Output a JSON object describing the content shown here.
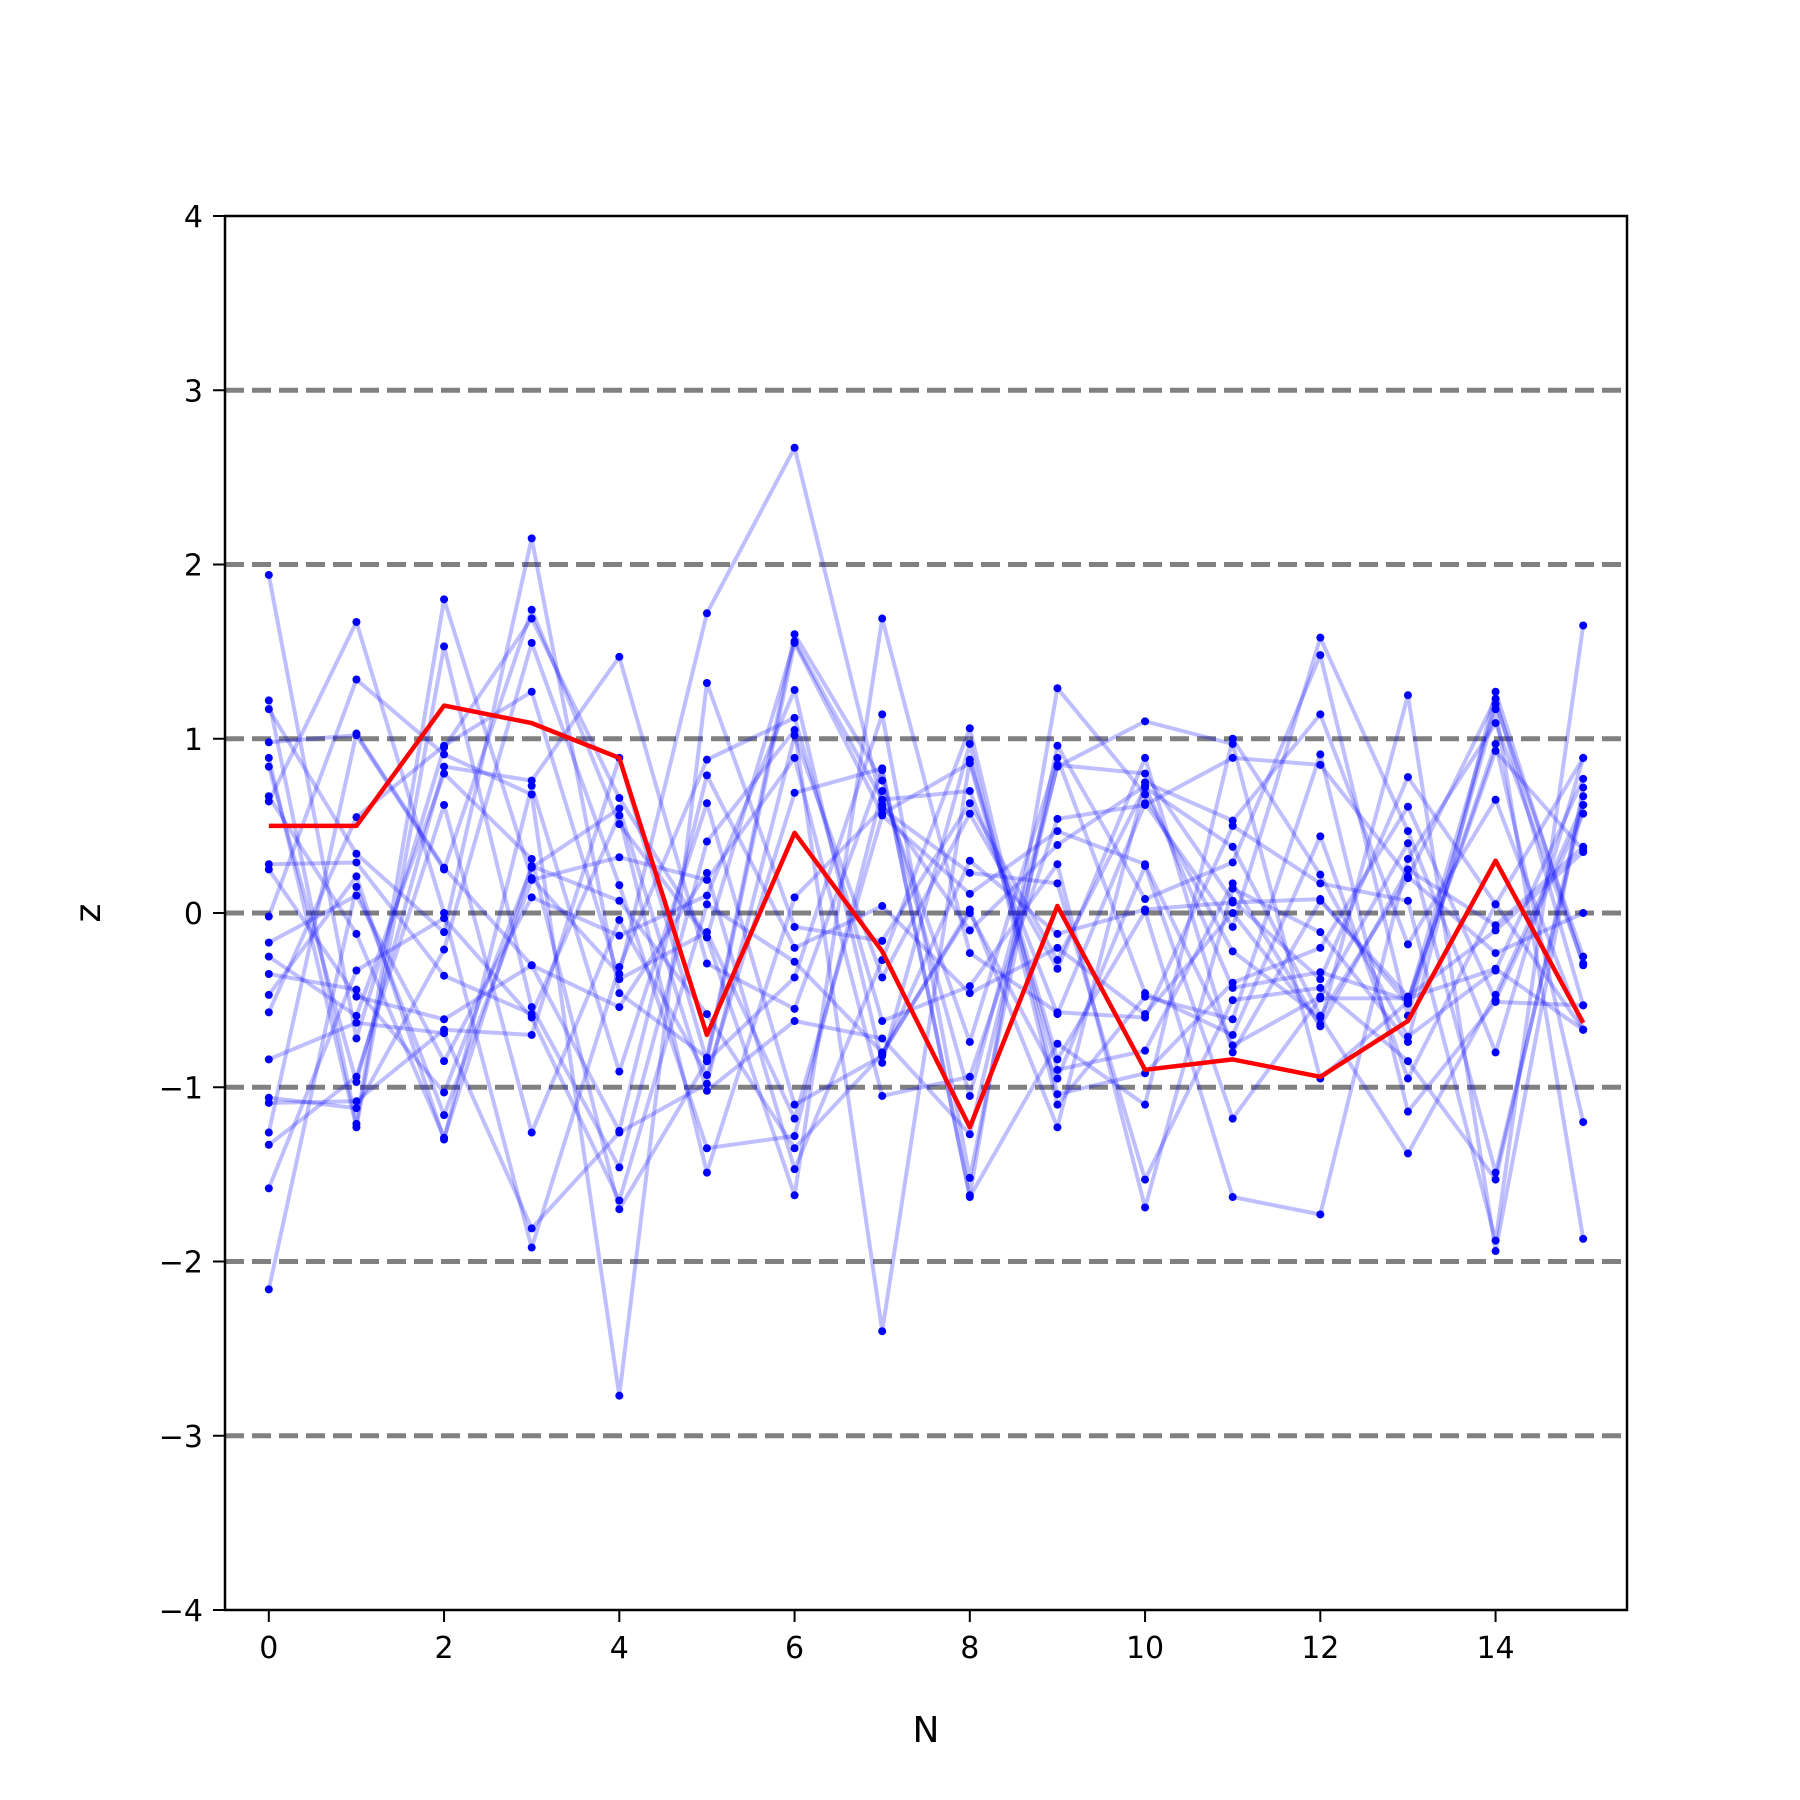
{
  "chart_data": {
    "type": "line",
    "xlabel": "N",
    "ylabel": "z",
    "xlim": [
      -0.5,
      15.5
    ],
    "ylim": [
      -4,
      4
    ],
    "xticks": [
      0,
      2,
      4,
      6,
      8,
      10,
      12,
      14
    ],
    "yticks": [
      -4,
      -3,
      -2,
      -1,
      0,
      1,
      2,
      3,
      4
    ],
    "ytick_labels": [
      "−4",
      "−3",
      "−2",
      "−1",
      "0",
      "1",
      "2",
      "3",
      "4"
    ],
    "reference_lines": [
      -3,
      -2,
      -1,
      0,
      1,
      2,
      3
    ],
    "grid": false,
    "legend": "none",
    "colors": {
      "samples": "#0000ff",
      "highlight": "#ff0000",
      "reference": "#808080"
    },
    "x": [
      0,
      1,
      2,
      3,
      4,
      5,
      6,
      7,
      8,
      9,
      10,
      11,
      12,
      13,
      14,
      15
    ],
    "highlight_series": [
      0.5,
      0.5,
      1.19,
      1.09,
      0.89,
      -0.7,
      0.46,
      -0.22,
      -1.23,
      0.04,
      -0.9,
      -0.84,
      -0.94,
      -0.62,
      0.3,
      -0.63
    ],
    "sample_series": [
      [
        1.94,
        -0.72,
        0.95,
        1.69,
        0.66,
        -0.14,
        1.56,
        0.65,
        0.7,
        -0.58,
        0.63,
        -0.08,
        1.58,
        0.47,
        -0.8,
        0.89
      ],
      [
        1.22,
        -1.21,
        1.8,
        0.2,
        -0.35,
        1.72,
        2.67,
        0.62,
        -0.1,
        0.39,
        0.73,
        -0.43,
        -0.34,
        -0.5,
        0.93,
        0.36
      ],
      [
        1.17,
        0.34,
        -0.11,
        2.15,
        -0.46,
        -0.83,
        1.6,
        0.76,
        -1.05,
        0.84,
        1.1,
        0.97,
        -0.95,
        -0.51,
        1.2,
        -0.25
      ],
      [
        0.98,
        1.02,
        0.25,
        1.74,
        0.51,
        -0.14,
        -1.62,
        1.69,
        -0.23,
        -0.57,
        -0.6,
        0.5,
        0.17,
        0.07,
        -1.88,
        1.65
      ],
      [
        0.89,
        -1.23,
        1.53,
        -0.54,
        -1.46,
        0.41,
        1.05,
        -2.4,
        0.88,
        -0.84,
        0.01,
        -1.63,
        -1.73,
        0.31,
        1.09,
        -0.29
      ],
      [
        0.84,
        -0.97,
        0.84,
        0.76,
        1.47,
        -0.29,
        -0.55,
        0.82,
        -1.62,
        1.29,
        0.68,
        -0.22,
        -0.6,
        -1.38,
        -0.47,
        0.62
      ],
      [
        0.67,
        -0.12,
        -1.29,
        0.27,
        0.07,
        -0.58,
        -1.35,
        -0.81,
        0.02,
        -1.23,
        0.75,
        0.53,
        1.14,
        -0.18,
        0.65,
        -0.67
      ],
      [
        0.64,
        1.67,
        0.0,
        -1.92,
        -0.31,
        0.88,
        1.12,
        -0.62,
        -0.42,
        0.28,
        -1.69,
        0.14,
        -0.11,
        -0.74,
        1.27,
        -0.3
      ],
      [
        0.28,
        0.29,
        -0.36,
        -0.58,
        0.56,
        -1.49,
        0.09,
        0.6,
        0.23,
        0.17,
        -1.53,
        -0.5,
        -0.43,
        -0.85,
        -1.53,
        0.67
      ],
      [
        0.25,
        -0.48,
        -0.61,
        -0.3,
        -1.25,
        0.79,
        -0.2,
        0.04,
        -0.46,
        -0.2,
        -0.58,
        0.0,
        -0.64,
        1.25,
        -1.94,
        0.72
      ],
      [
        -0.02,
        1.34,
        0.91,
        0.68,
        -2.77,
        1.32,
        -0.08,
        -0.16,
        0.63,
        -0.27,
        0.72,
        0.38,
        -0.59,
        0.2,
        1.23,
        -0.53
      ],
      [
        -0.17,
        0.1,
        -0.85,
        0.09,
        -0.13,
        0.1,
        1.28,
        -0.86,
        0.97,
        -1.1,
        -0.48,
        -0.61,
        0.91,
        -1.14,
        -0.51,
        -0.53
      ],
      [
        -0.25,
        -0.59,
        0.8,
        0.31,
        -1.7,
        -0.85,
        -0.37,
        1.14,
        -1.52,
        0.96,
        0.08,
        0.29,
        1.48,
        -0.59,
        1.17,
        -1.87
      ],
      [
        -0.35,
        -0.44,
        -1.03,
        0.26,
        0.6,
        -1.02,
        -0.62,
        -0.72,
        -1.27,
        0.85,
        0.8,
        0.07,
        -0.38,
        0.78,
        0.05,
        -0.67
      ],
      [
        -0.47,
        0.21,
        -1.3,
        0.73,
        -0.91,
        0.63,
        -1.1,
        -0.82,
        0.3,
        -0.12,
        0.02,
        0.06,
        0.08,
        -0.52,
        0.97,
        -1.2
      ],
      [
        -0.57,
        0.55,
        0.96,
        1.27,
        -0.38,
        -0.11,
        -1.18,
        0.56,
        0.11,
        0.47,
        0.28,
        -0.76,
        -0.48,
        0.4,
        -1.49,
        0.62
      ],
      [
        -0.84,
        -0.63,
        -0.69,
        -1.81,
        -1.26,
        -0.98,
        1.02,
        -0.37,
        0.57,
        -0.32,
        0.89,
        -0.8,
        0.07,
        -0.48,
        -0.1,
        0.35
      ],
      [
        -1.06,
        -1.12,
        -0.21,
        1.55,
        0.16,
        -1.35,
        -1.28,
        0.7,
        -0.74,
        0.89,
        -0.46,
        -0.7,
        0.44,
        -0.95,
        0.05,
        0.89
      ],
      [
        -1.09,
        -1.08,
        -0.67,
        -0.7,
        0.89,
        -0.85,
        1.55,
        0.57,
        0.86,
        -0.9,
        -0.79,
        0.17,
        -0.65,
        0.25,
        -0.07,
        0.38
      ],
      [
        -1.26,
        1.03,
        0.26,
        -0.3,
        -0.54,
        0.23,
        -1.47,
        -0.27,
        1.06,
        -1.04,
        -0.92,
        -0.4,
        -0.2,
        0.61,
        -0.5,
        0.57
      ],
      [
        -1.33,
        -0.94,
        0.62,
        -1.26,
        -0.04,
        -0.93,
        0.69,
        0.83,
        -1.63,
        -0.75,
        -1.1,
        1.0,
        0.22,
        -0.71,
        -0.33,
        0.77
      ],
      [
        -1.58,
        -0.33,
        -0.03,
        -0.6,
        -1.65,
        0.05,
        -0.28,
        -0.8,
        0.0,
        -0.95,
        0.27,
        -1.18,
        -0.49,
        -0.49,
        -0.32,
        -0.67
      ],
      [
        -2.16,
        0.15,
        -1.16,
        0.19,
        0.32,
        0.19,
        0.89,
        -1.05,
        -0.94,
        0.54,
        0.62,
        0.89,
        0.85,
        0.21,
        -0.23,
        0.0
      ]
    ]
  }
}
